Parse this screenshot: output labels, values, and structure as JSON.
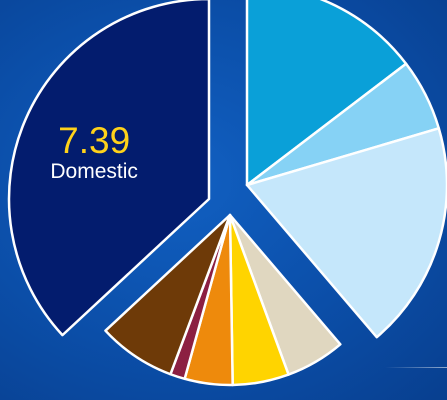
{
  "chart_data": {
    "type": "pie",
    "title": "",
    "slices": [
      {
        "label": "Domestic",
        "value": 7.39,
        "color": "#031c6e",
        "show_label": true
      },
      {
        "label": "",
        "value": 2.93,
        "color": "#0aa0d8",
        "show_label": false
      },
      {
        "label": "",
        "value": 1.16,
        "color": "#86d2f5",
        "show_label": false
      },
      {
        "label": "",
        "value": 3.67,
        "color": "#c5e7fb",
        "show_label": false
      },
      {
        "label": "",
        "value": 1.13,
        "color": "#e0d7c0",
        "show_label": false
      },
      {
        "label": "",
        "value": 1.07,
        "color": "#ffd400",
        "show_label": false
      },
      {
        "label": "",
        "value": 0.91,
        "color": "#ee8a0c",
        "show_label": false
      },
      {
        "label": "",
        "value": 0.28,
        "color": "#8c1f42",
        "show_label": false
      },
      {
        "label": "",
        "value": 1.48,
        "color": "#6e3a08",
        "show_label": false
      }
    ],
    "colors": {
      "value_text": "#ffd21a",
      "name_text": "#ffffff",
      "slice_border": "#ffffff"
    }
  }
}
